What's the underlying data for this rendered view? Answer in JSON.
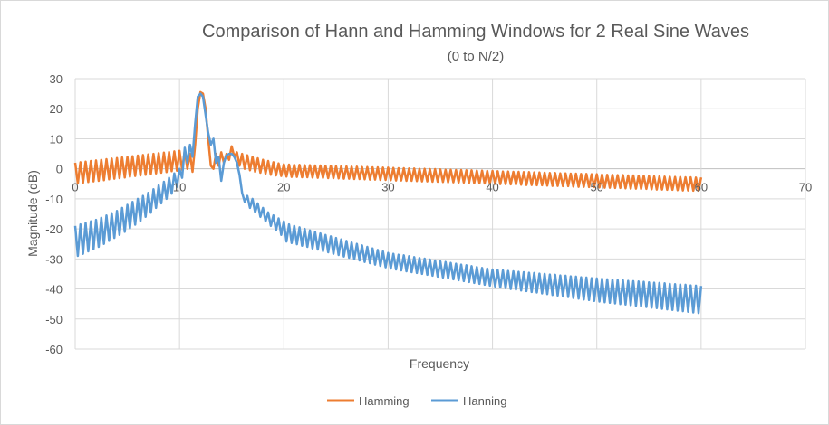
{
  "chart_data": {
    "type": "line",
    "title": "Comparison of Hann and Hamming Windows for 2 Real Sine Waves",
    "subtitle": "(0 to N/2)",
    "xlabel": "Frequency",
    "ylabel": "Magnitude (dB)",
    "xlim": [
      0,
      70
    ],
    "ylim": [
      -60,
      30
    ],
    "x_ticks": [
      0,
      10,
      20,
      30,
      40,
      50,
      60,
      70
    ],
    "y_ticks": [
      30,
      20,
      10,
      0,
      -10,
      -20,
      -30,
      -40,
      -50,
      -60
    ],
    "grid": true,
    "legend": "bottom",
    "x_start": 0,
    "x_step": 0.25,
    "series": [
      {
        "name": "Hamming",
        "color": "#ED7D31",
        "values": [
          2,
          -4.9,
          2.2,
          -4.7,
          2.4,
          -4.4,
          2.6,
          -4.2,
          2.8,
          -4,
          3,
          -3.8,
          3.2,
          -3.5,
          3.4,
          -3.3,
          3.6,
          -3.1,
          3.8,
          -2.9,
          4,
          -2.6,
          4.2,
          -2.4,
          4.4,
          -2.2,
          4.6,
          -2,
          4.8,
          -1.7,
          5,
          -1.5,
          5.2,
          -1.3,
          5.4,
          -1.1,
          5.6,
          -0.8,
          5.8,
          -0.6,
          6,
          -0.3,
          6,
          0,
          5,
          -1,
          8,
          20,
          25.5,
          25,
          20,
          10,
          1,
          0,
          5,
          1,
          5.5,
          2,
          5,
          3,
          7.5,
          4,
          5.5,
          1,
          5,
          0,
          4.5,
          -0.5,
          4,
          -1,
          3.5,
          -1.3,
          3,
          -1.6,
          2.6,
          -2,
          2.2,
          -2.2,
          1.8,
          -2.4,
          1.5,
          -2.6,
          1.4,
          -2.7,
          1.3,
          -2.7,
          1.3,
          -2.8,
          1.2,
          -2.8,
          1.2,
          -2.9,
          1.1,
          -3,
          1.1,
          -3,
          1,
          -3.1,
          1,
          -3.1,
          0.9,
          -3.2,
          0.9,
          -3.3,
          0.8,
          -3.3,
          0.7,
          -3.4,
          0.7,
          -3.4,
          0.6,
          -3.5,
          0.6,
          -3.6,
          0.5,
          -3.6,
          0.5,
          -3.7,
          0.4,
          -3.7,
          0.4,
          -3.8,
          0.3,
          -3.9,
          0.2,
          -3.9,
          0.2,
          -4,
          0.1,
          -4,
          0.1,
          -4.1,
          0,
          -4.2,
          0,
          -4.2,
          -0.1,
          -4.3,
          -0.1,
          -4.3,
          -0.2,
          -4.4,
          -0.3,
          -4.5,
          -0.3,
          -4.5,
          -0.4,
          -4.6,
          -0.4,
          -4.6,
          -0.5,
          -4.7,
          -0.5,
          -4.8,
          -0.6,
          -4.8,
          -0.6,
          -4.9,
          -0.7,
          -4.9,
          -0.7,
          -5,
          -0.8,
          -5.1,
          -0.9,
          -5.1,
          -0.9,
          -5.2,
          -1,
          -5.2,
          -1,
          -5.3,
          -1.1,
          -5.4,
          -1.1,
          -5.4,
          -1.2,
          -5.5,
          -1.2,
          -5.5,
          -1.3,
          -5.6,
          -1.4,
          -5.7,
          -1.4,
          -5.7,
          -1.5,
          -5.8,
          -1.5,
          -5.8,
          -1.6,
          -5.9,
          -1.6,
          -6,
          -1.7,
          -6,
          -1.7,
          -6.1,
          -1.8,
          -6.1,
          -1.8,
          -6.2,
          -1.9,
          -6.3,
          -2,
          -6.3,
          -2,
          -6.4,
          -2.1,
          -6.4,
          -2.1,
          -6.5,
          -2.2,
          -6.6,
          -2.2,
          -6.6,
          -2.3,
          -6.7,
          -2.3,
          -6.7,
          -2.4,
          -6.8,
          -2.5,
          -6.9,
          -2.5,
          -6.9,
          -2.6,
          -7,
          -2.6,
          -7,
          -2.7,
          -7.1,
          -2.7,
          -7.2,
          -2.8,
          -7.2,
          -2.8,
          -7.3,
          -2.9,
          -7.3,
          -2.9
        ]
      },
      {
        "name": "Hanning",
        "color": "#5B9BD5",
        "values": [
          -19,
          -29,
          -18.5,
          -28.3,
          -18,
          -27.5,
          -17.5,
          -26.8,
          -17,
          -26,
          -16.3,
          -25,
          -15.5,
          -24,
          -14.8,
          -23,
          -14,
          -22,
          -13,
          -21,
          -12,
          -19.8,
          -11,
          -18.6,
          -10,
          -17.4,
          -9,
          -16,
          -8,
          -14.6,
          -6.8,
          -13,
          -5.5,
          -11.5,
          -4.3,
          -10,
          -3,
          -8.3,
          -1.5,
          -6,
          0,
          -3,
          7,
          2,
          8,
          4,
          15,
          24,
          25,
          24,
          18,
          12,
          8,
          10,
          2,
          4,
          -4,
          2,
          4.5,
          5,
          5,
          4,
          2,
          -2,
          -8,
          -11,
          -9,
          -13,
          -10,
          -14.5,
          -11.5,
          -16,
          -13,
          -17.5,
          -14.5,
          -19,
          -15.5,
          -20.5,
          -16.5,
          -22,
          -17.5,
          -24.2,
          -18.5,
          -24.7,
          -19,
          -25.1,
          -19.5,
          -25.6,
          -20,
          -26,
          -20.5,
          -26.5,
          -21,
          -26.9,
          -21.5,
          -27.4,
          -22,
          -27.8,
          -22.5,
          -28.3,
          -23,
          -28.7,
          -23.5,
          -29.2,
          -24,
          -29.6,
          -24.5,
          -30.1,
          -25,
          -30.5,
          -25.5,
          -31,
          -26,
          -31.4,
          -26.5,
          -31.9,
          -27,
          -32.3,
          -27.5,
          -32.8,
          -28,
          -33.2,
          -28.3,
          -33.5,
          -28.6,
          -33.8,
          -28.8,
          -34.1,
          -29.1,
          -34.4,
          -29.4,
          -34.7,
          -29.7,
          -35,
          -29.9,
          -35.3,
          -30.2,
          -35.6,
          -30.5,
          -35.9,
          -30.8,
          -36.2,
          -31,
          -36.5,
          -31.3,
          -36.8,
          -31.6,
          -37.1,
          -31.9,
          -37.4,
          -32.1,
          -37.7,
          -32.4,
          -38,
          -32.7,
          -38.3,
          -33,
          -38.6,
          -33.2,
          -38.9,
          -33.5,
          -39.2,
          -33.7,
          -39.5,
          -33.8,
          -39.7,
          -34,
          -40,
          -34.1,
          -40.2,
          -34.3,
          -40.5,
          -34.4,
          -40.7,
          -34.6,
          -41,
          -34.7,
          -41.2,
          -34.9,
          -41.5,
          -35,
          -41.7,
          -35.2,
          -42,
          -35.3,
          -42.2,
          -35.5,
          -42.5,
          -35.6,
          -42.7,
          -35.8,
          -43,
          -35.9,
          -43.2,
          -36.1,
          -43.5,
          -36.2,
          -43.7,
          -36.4,
          -44,
          -36.5,
          -44.2,
          -36.6,
          -44.4,
          -36.8,
          -44.6,
          -36.9,
          -44.8,
          -37,
          -45,
          -37.1,
          -45.2,
          -37.3,
          -45.4,
          -37.4,
          -45.6,
          -37.5,
          -45.8,
          -37.6,
          -46,
          -37.8,
          -46.2,
          -37.9,
          -46.4,
          -38,
          -46.6,
          -38.1,
          -46.8,
          -38.3,
          -47,
          -38.4,
          -47.2,
          -38.5,
          -47.4,
          -38.6,
          -47.6,
          -38.8,
          -47.8,
          -38.9,
          -48,
          -39
        ]
      }
    ]
  }
}
